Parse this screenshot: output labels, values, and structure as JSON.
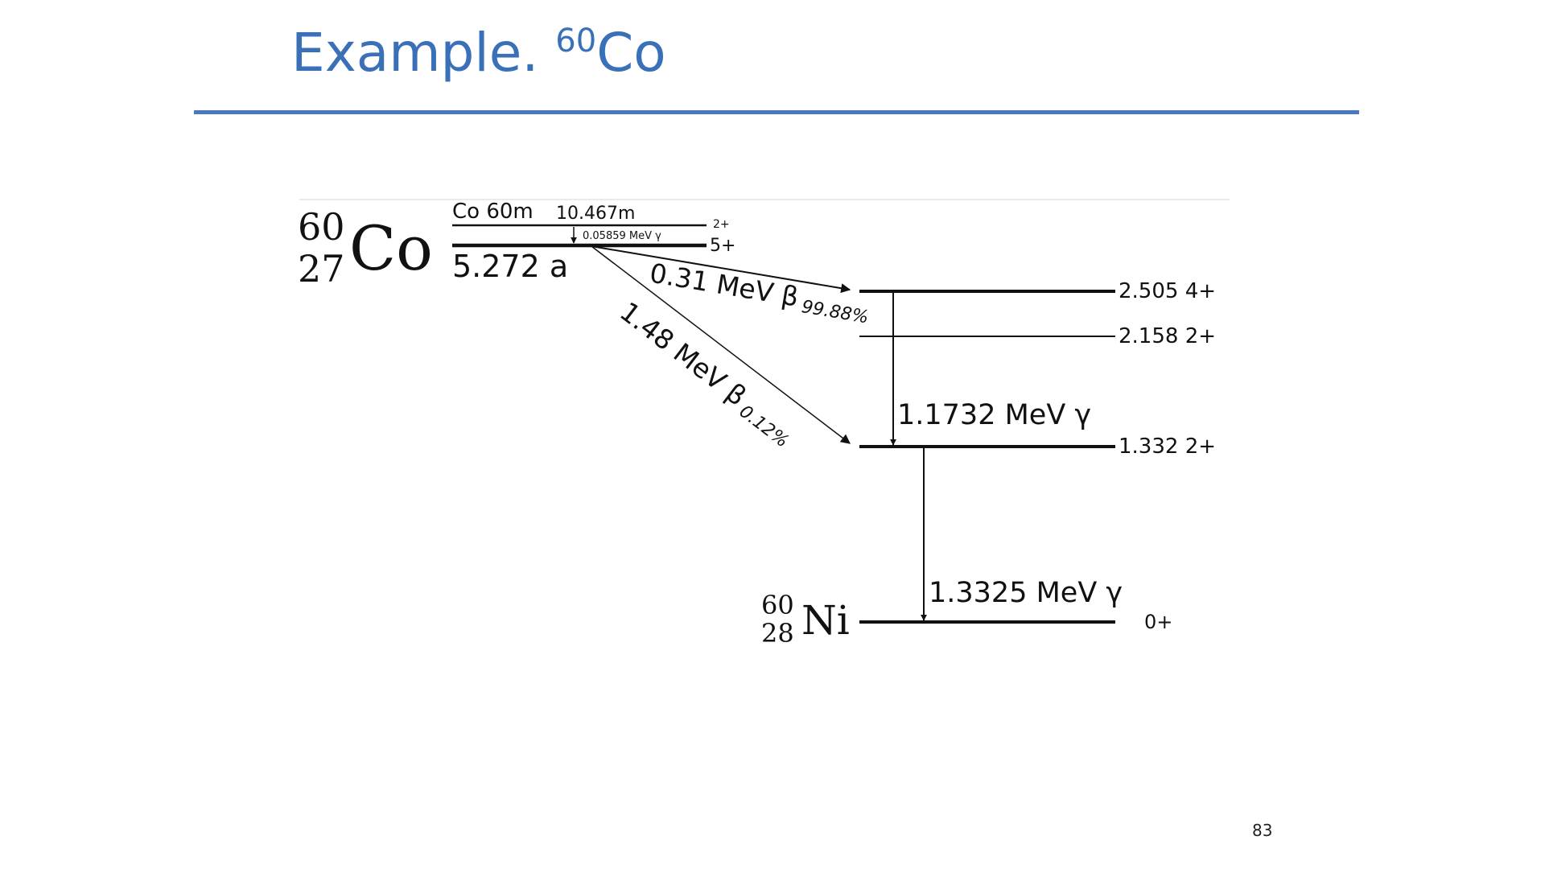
{
  "slide": {
    "title_main": "Example. ",
    "title_mass": "60",
    "title_element": "Co",
    "page_number": "83"
  },
  "parent": {
    "mass": "60",
    "atomic": "27",
    "symbol": "Co",
    "isomer_label": "Co 60m",
    "isomer_halflife": "10.467m",
    "isomer_spin": "2+",
    "isomer_gamma": "0.05859 MeV γ",
    "ground_spin": "5+",
    "ground_halflife": "5.272 a"
  },
  "daughter": {
    "mass": "60",
    "atomic": "28",
    "symbol": "Ni"
  },
  "levels": [
    {
      "energy_label": "2.505 4+"
    },
    {
      "energy_label": "2.158 2+"
    },
    {
      "energy_label": "1.332 2+"
    },
    {
      "energy_label": "0+"
    }
  ],
  "beta_decays": [
    {
      "energy": "0.31 MeV β",
      "branch": "99.88%"
    },
    {
      "energy": "1.48 MeV β",
      "branch": "0.12%"
    }
  ],
  "gamma_transitions": [
    {
      "label": "1.1732 MeV γ"
    },
    {
      "label": "1.3325 MeV γ"
    }
  ]
}
